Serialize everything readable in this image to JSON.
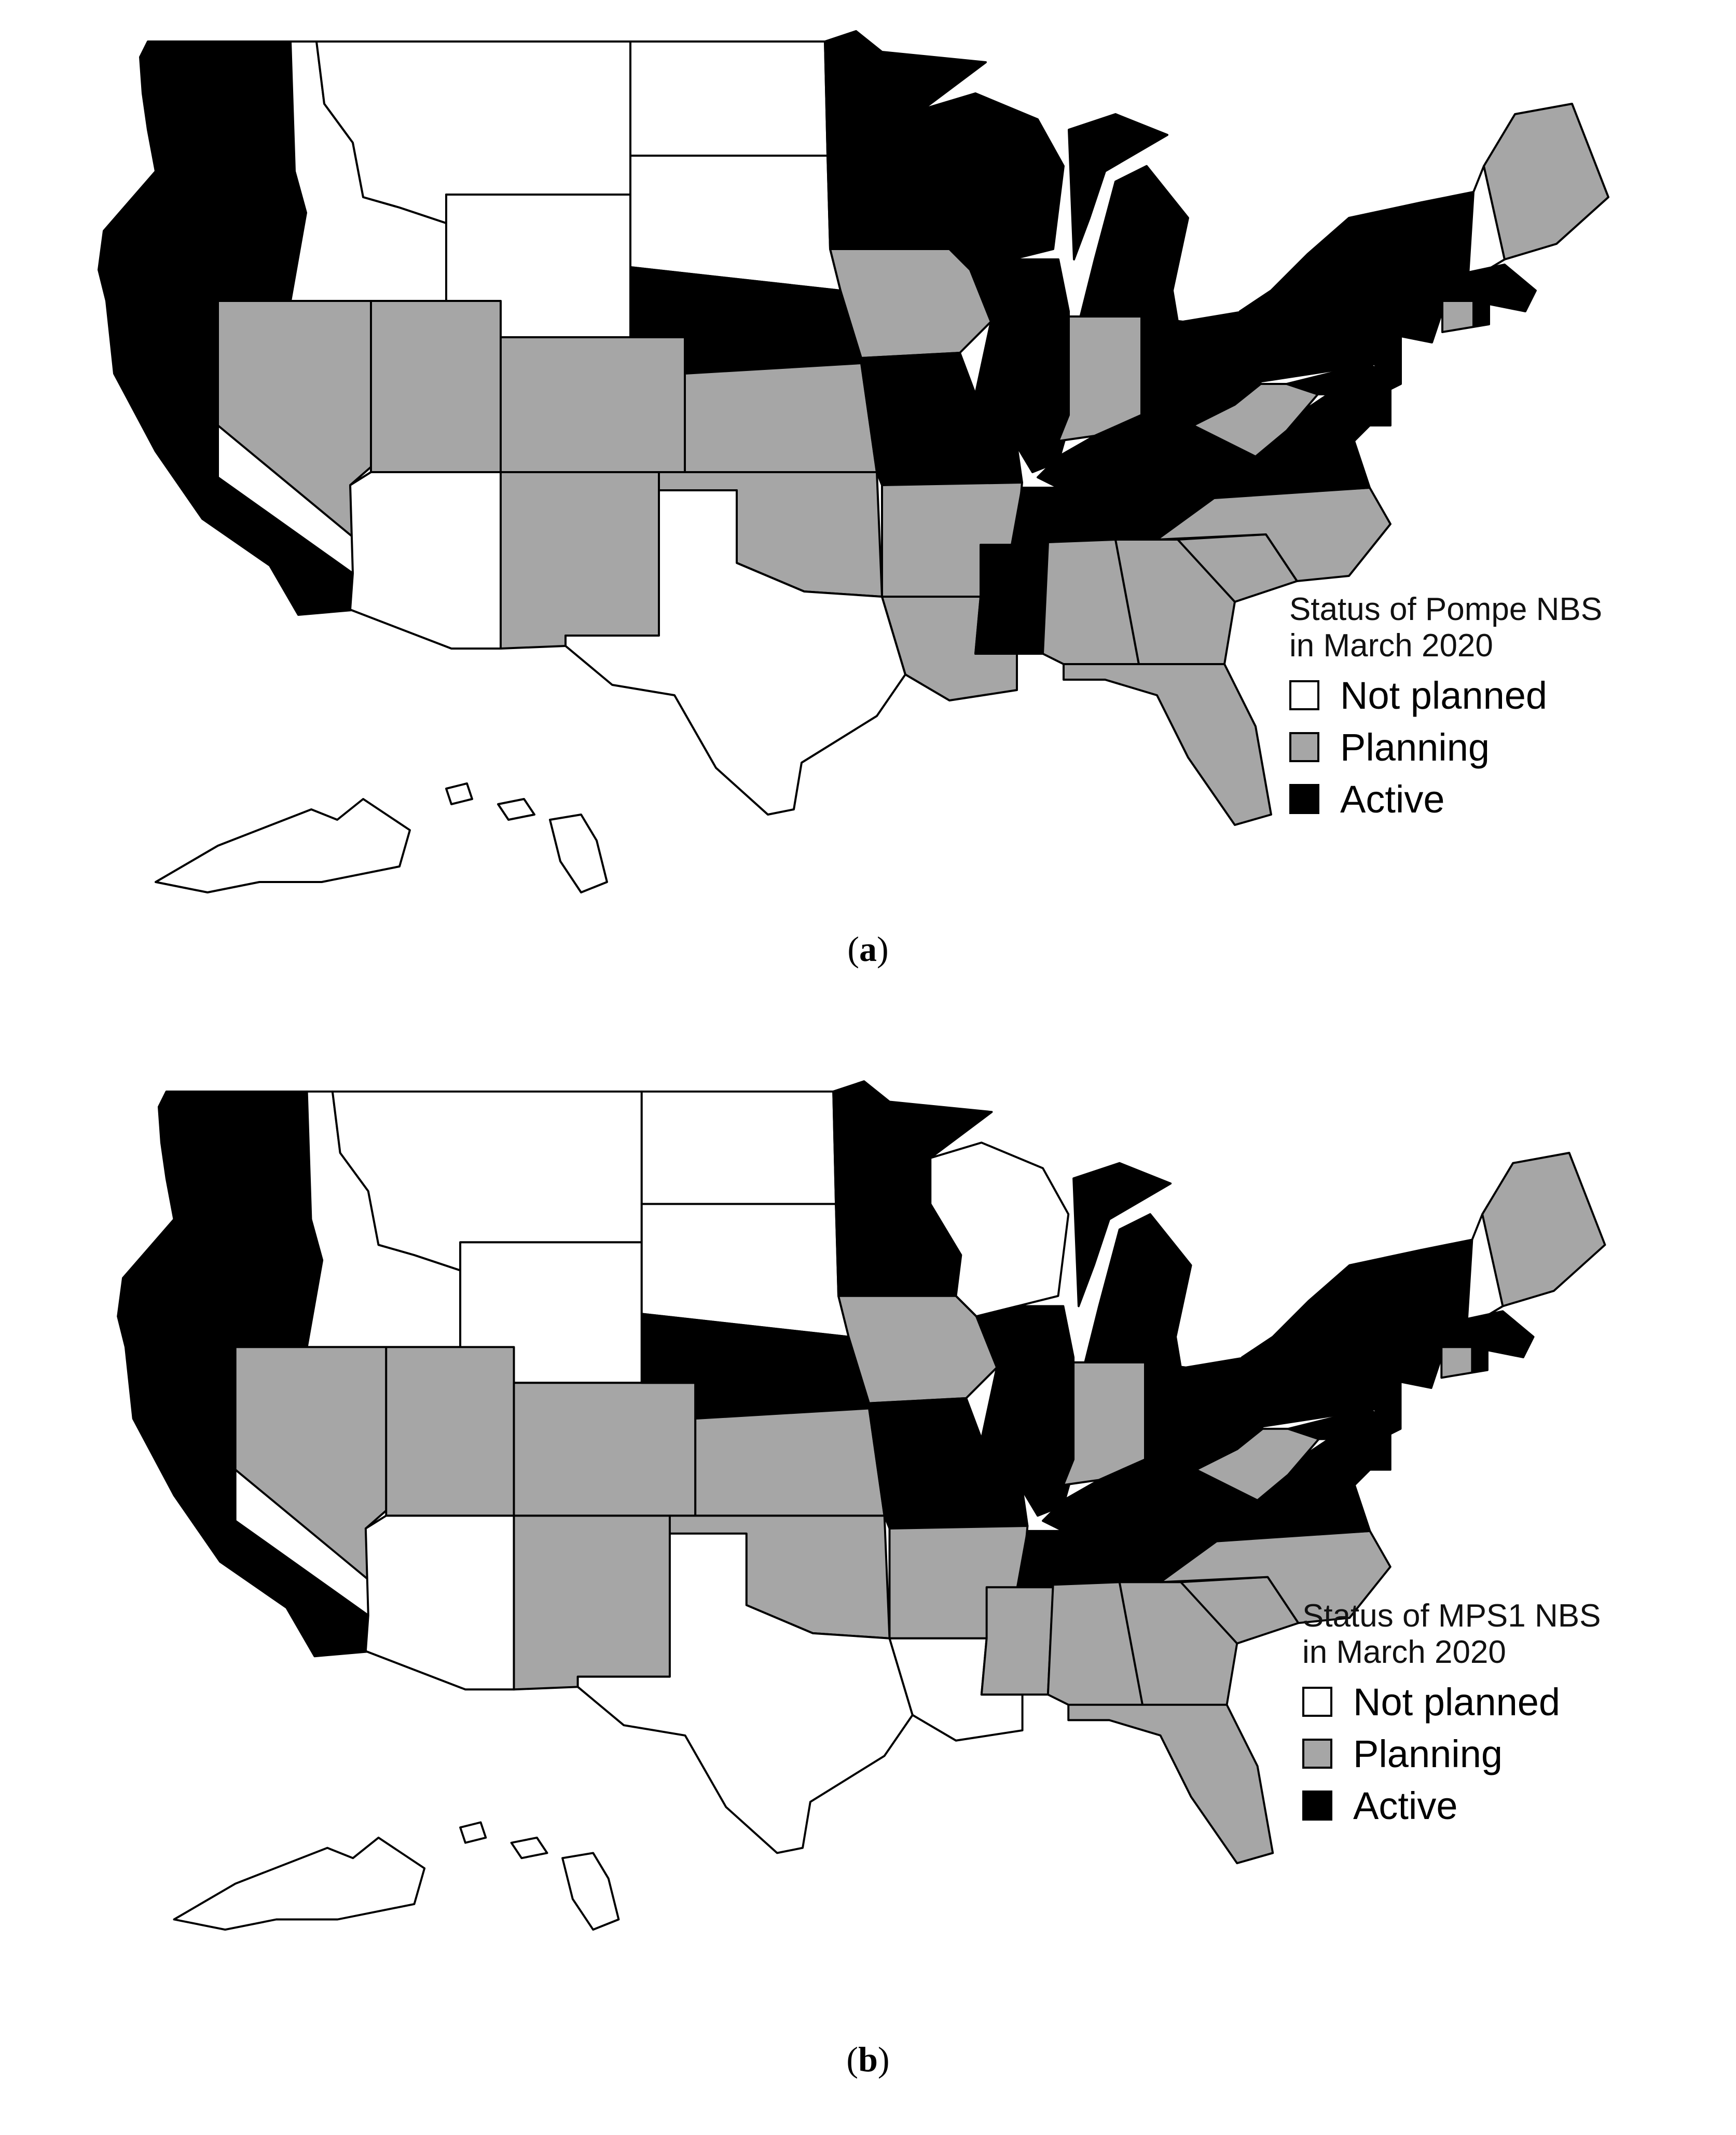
{
  "colors": {
    "not_planned": "#ffffff",
    "planning": "#a6a6a6",
    "active": "#000000"
  },
  "panels": [
    {
      "id": "a",
      "legend": {
        "title": "Status of Pompe NBS\nin March 2020",
        "items": [
          "Not planned",
          "Planning",
          "Active"
        ]
      },
      "caption": {
        "open": "(",
        "letter": "a",
        "close": ")"
      },
      "status": {
        "WA": "active",
        "OR": "active",
        "CA": "active",
        "ID": "not_planned",
        "NV": "planning",
        "MT": "not_planned",
        "WY": "not_planned",
        "UT": "planning",
        "AZ": "not_planned",
        "CO": "planning",
        "NM": "planning",
        "ND": "not_planned",
        "SD": "not_planned",
        "NE": "active",
        "KS": "planning",
        "OK": "planning",
        "TX": "not_planned",
        "MN": "active",
        "IA": "planning",
        "MO": "active",
        "AR": "planning",
        "LA": "planning",
        "WI": "active",
        "IL": "active",
        "MI": "active",
        "IN": "planning",
        "OH": "active",
        "KY": "active",
        "TN": "active",
        "MS": "active",
        "AL": "planning",
        "GA": "planning",
        "FL": "planning",
        "SC": "planning",
        "NC": "planning",
        "VA": "active",
        "WV": "planning",
        "PA": "active",
        "NY": "active",
        "VT": "active",
        "NH": "not_planned",
        "ME": "planning",
        "MA": "active",
        "CT": "planning",
        "RI": "active",
        "NJ": "active",
        "DE": "active",
        "MD": "active",
        "AK": "not_planned",
        "HI": "not_planned"
      }
    },
    {
      "id": "b",
      "legend": {
        "title": "Status of MPS1 NBS\nin March 2020",
        "items": [
          "Not planned",
          "Planning",
          "Active"
        ]
      },
      "caption": {
        "open": "(",
        "letter": "b",
        "close": ")"
      },
      "status": {
        "WA": "active",
        "OR": "active",
        "CA": "active",
        "ID": "not_planned",
        "NV": "planning",
        "MT": "not_planned",
        "WY": "not_planned",
        "UT": "planning",
        "AZ": "not_planned",
        "CO": "planning",
        "NM": "planning",
        "ND": "not_planned",
        "SD": "not_planned",
        "NE": "active",
        "KS": "planning",
        "OK": "planning",
        "TX": "not_planned",
        "MN": "active",
        "IA": "planning",
        "MO": "active",
        "AR": "planning",
        "LA": "not_planned",
        "WI": "not_planned",
        "IL": "active",
        "MI": "active",
        "IN": "planning",
        "OH": "active",
        "KY": "active",
        "TN": "active",
        "MS": "planning",
        "AL": "planning",
        "GA": "planning",
        "FL": "planning",
        "SC": "planning",
        "NC": "planning",
        "VA": "active",
        "WV": "planning",
        "PA": "active",
        "NY": "active",
        "VT": "active",
        "NH": "not_planned",
        "ME": "planning",
        "MA": "active",
        "CT": "planning",
        "RI": "active",
        "NJ": "active",
        "DE": "active",
        "MD": "active",
        "AK": "not_planned",
        "HI": "not_planned"
      }
    }
  ]
}
